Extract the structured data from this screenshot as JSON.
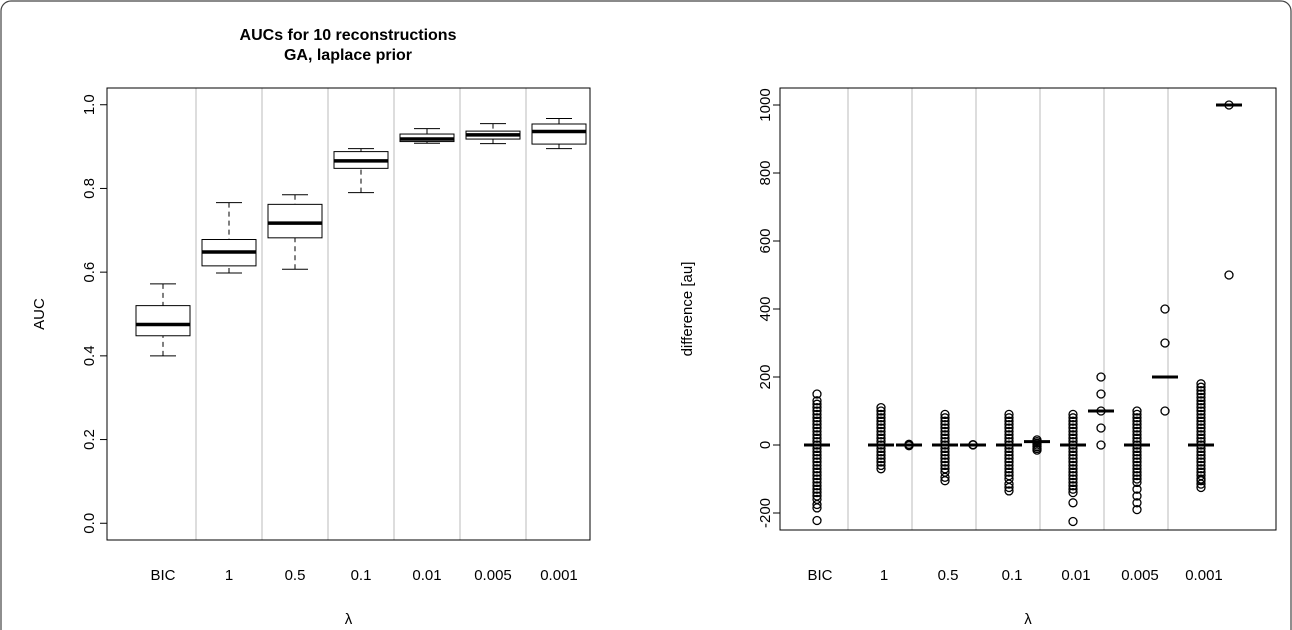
{
  "chart_data": [
    {
      "type": "box",
      "title": "AUCs for 10 reconstructions",
      "subtitle": "GA, laplace prior",
      "y_label": "AUC",
      "x_label": "λ",
      "categories": [
        "BIC",
        "1",
        "0.5",
        "0.1",
        "0.01",
        "0.005",
        "0.001"
      ],
      "boxes": [
        {
          "min": 0.4,
          "q1": 0.448,
          "median": 0.475,
          "q3": 0.52,
          "max": 0.572
        },
        {
          "min": 0.598,
          "q1": 0.615,
          "median": 0.648,
          "q3": 0.678,
          "max": 0.766
        },
        {
          "min": 0.607,
          "q1": 0.682,
          "median": 0.717,
          "q3": 0.762,
          "max": 0.785
        },
        {
          "min": 0.79,
          "q1": 0.848,
          "median": 0.866,
          "q3": 0.888,
          "max": 0.895
        },
        {
          "min": 0.908,
          "q1": 0.912,
          "median": 0.918,
          "q3": 0.93,
          "max": 0.943
        },
        {
          "min": 0.907,
          "q1": 0.918,
          "median": 0.928,
          "q3": 0.937,
          "max": 0.955
        },
        {
          "min": 0.895,
          "q1": 0.906,
          "median": 0.936,
          "q3": 0.954,
          "max": 0.967
        }
      ],
      "ylim": [
        -0.04,
        1.04
      ],
      "yticks": [
        {
          "value": 0,
          "label": "0.0"
        },
        0.2,
        0.4,
        0.6,
        0.8,
        {
          "value": 1,
          "label": "1.0"
        }
      ],
      "grid": true
    },
    {
      "type": "strip",
      "y_label": "difference [au]",
      "x_label": "λ",
      "categories": [
        "BIC",
        "1",
        "0.5",
        "0.1",
        "0.01",
        "0.005",
        "0.001"
      ],
      "main": [
        {
          "median": 0,
          "points": [
            -222,
            -185,
            -175,
            -160,
            -150,
            -140,
            -130,
            -120,
            -110,
            -100,
            -90,
            -80,
            -70,
            -60,
            -50,
            -40,
            -30,
            -20,
            -10,
            0,
            10,
            20,
            30,
            40,
            50,
            60,
            70,
            80,
            90,
            100,
            110,
            120,
            130,
            150
          ]
        },
        {
          "median": 0,
          "points": [
            -70,
            -60,
            -50,
            -40,
            -30,
            -20,
            -10,
            0,
            10,
            20,
            30,
            40,
            50,
            60,
            70,
            80,
            90,
            100,
            110
          ]
        },
        {
          "median": 0,
          "points": [
            -105,
            -95,
            -80,
            -70,
            -60,
            -50,
            -40,
            -30,
            -20,
            -10,
            0,
            10,
            20,
            30,
            40,
            50,
            60,
            70,
            80,
            90
          ]
        },
        {
          "median": 0,
          "points": [
            -135,
            -125,
            -115,
            -100,
            -90,
            -80,
            -70,
            -60,
            -50,
            -40,
            -30,
            -20,
            -10,
            0,
            10,
            20,
            30,
            40,
            50,
            60,
            70,
            80,
            90
          ]
        },
        {
          "median": 0,
          "points": [
            -225,
            -170,
            -140,
            -130,
            -120,
            -110,
            -100,
            -90,
            -80,
            -70,
            -60,
            -50,
            -40,
            -30,
            -20,
            -10,
            0,
            10,
            20,
            30,
            40,
            50,
            60,
            70,
            80,
            90
          ]
        },
        {
          "median": 0,
          "points": [
            -190,
            -170,
            -150,
            -130,
            -110,
            -100,
            -90,
            -80,
            -70,
            -60,
            -50,
            -40,
            -30,
            -20,
            -10,
            0,
            10,
            20,
            30,
            40,
            50,
            60,
            70,
            80,
            90,
            100
          ]
        },
        {
          "median": 0,
          "points": [
            -125,
            -115,
            -105,
            -100,
            -90,
            -80,
            -70,
            -60,
            -50,
            -40,
            -30,
            -20,
            -10,
            0,
            10,
            20,
            30,
            40,
            50,
            60,
            70,
            80,
            90,
            100,
            110,
            120,
            130,
            140,
            150,
            160,
            170,
            180
          ]
        }
      ],
      "extra": [
        null,
        {
          "median": 0,
          "points": [
            -2,
            0,
            2
          ]
        },
        {
          "median": 0,
          "points": [
            0,
            1
          ]
        },
        {
          "median": 10,
          "points": [
            -15,
            -10,
            -5,
            0,
            5,
            10,
            15
          ]
        },
        {
          "median": 100,
          "points": [
            0,
            50,
            100,
            150,
            200
          ]
        },
        {
          "median": 200,
          "points": [
            100,
            300,
            400
          ]
        },
        {
          "median": 1000,
          "points": [
            500,
            1000
          ]
        }
      ],
      "ylim": [
        -250,
        1050
      ],
      "yticks": [
        -200,
        0,
        200,
        400,
        600,
        800,
        1000
      ],
      "grid": true
    }
  ]
}
